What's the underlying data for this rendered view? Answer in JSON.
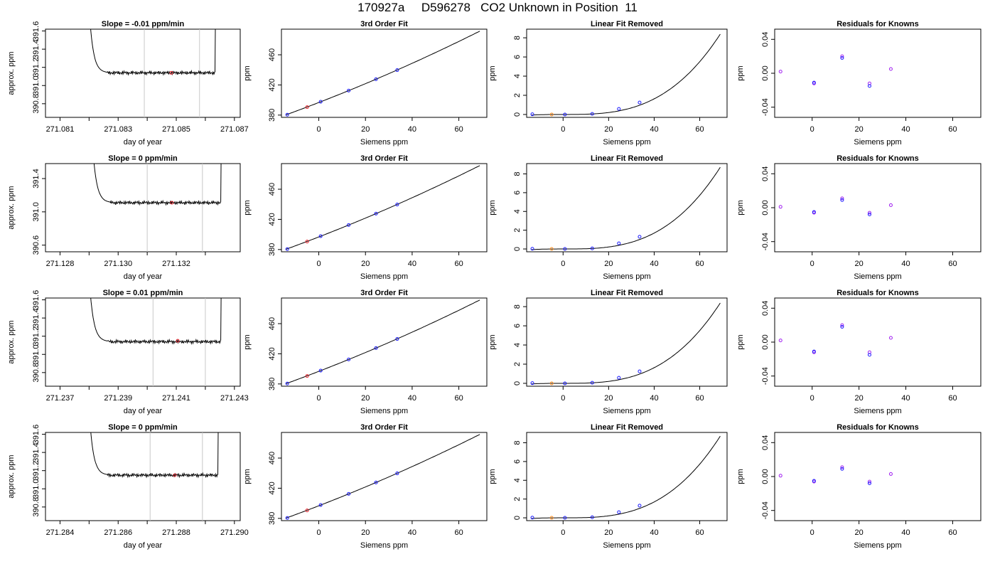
{
  "figure": {
    "title": "170927a     D596278   CO2 Unknown in Position  11"
  },
  "colors": {
    "trace": "#000000",
    "vline": "#c8c8c8",
    "point_red": "#e8202a",
    "point_orange": "#ff8c1a",
    "point_blue": "#1a1aff",
    "point_purple": "#a020f0"
  },
  "chart_data": [
    {
      "type": "line",
      "row": 0,
      "col": 0,
      "title": "Slope =  -0.01  ppm/min",
      "xlabel": "day of year",
      "ylabel": "approx. ppm",
      "xlim": [
        271.0805,
        271.0872
      ],
      "ylim": [
        390.65,
        391.62
      ],
      "xticks": [
        271.081,
        271.082,
        271.083,
        271.084,
        271.085,
        271.086,
        271.087
      ],
      "xticklabels": [
        "271.081",
        "",
        "271.083",
        "",
        "271.085",
        "",
        "271.087"
      ],
      "yticks": [
        390.8,
        391.0,
        391.2,
        391.4,
        391.6
      ],
      "yticklabels": [
        "390.8",
        "391.0",
        "391.2",
        "391.4",
        "391.6"
      ],
      "trace_start": 271.082,
      "trace_end": 271.0864,
      "plateau": 391.14,
      "vlines": [
        271.0839,
        271.0858
      ],
      "point": {
        "x": 271.08483,
        "y": 391.14,
        "color": "red"
      }
    },
    {
      "type": "scatter+line",
      "row": 0,
      "col": 1,
      "title": "3rd Order Fit",
      "xlabel": "Siemens ppm",
      "ylabel": "ppm",
      "xlim": [
        -16,
        72
      ],
      "ylim": [
        377,
        494
      ],
      "xticks": [
        0,
        20,
        40,
        60
      ],
      "xticklabels": [
        "0",
        "20",
        "40",
        "60"
      ],
      "yticks": [
        380,
        420,
        460
      ],
      "yticklabels": [
        "380",
        "420",
        "460"
      ],
      "curve_x": [
        -14,
        69
      ],
      "curve_coef": [
        396.7,
        1.2,
        0.0025
      ],
      "points": [
        {
          "x": -13.5,
          "y": 380.5,
          "color": "blue"
        },
        {
          "x": -5.0,
          "y": 390.6,
          "color": "red"
        },
        {
          "x": 0.8,
          "y": 397.7,
          "color": "blue"
        },
        {
          "x": 12.8,
          "y": 412.5,
          "color": "blue"
        },
        {
          "x": 24.5,
          "y": 427.6,
          "color": "blue"
        },
        {
          "x": 33.6,
          "y": 439.7,
          "color": "blue"
        }
      ]
    },
    {
      "type": "scatter+line",
      "row": 0,
      "col": 2,
      "title": "Linear Fit Removed",
      "xlabel": "Siemens ppm",
      "ylabel": "ppm",
      "xlim": [
        -16,
        72
      ],
      "ylim": [
        -0.3,
        8.9
      ],
      "xticks": [
        0,
        20,
        40,
        60
      ],
      "xticklabels": [
        "0",
        "20",
        "40",
        "60"
      ],
      "yticks": [
        0,
        2,
        4,
        6,
        8
      ],
      "yticklabels": [
        "0",
        "2",
        "4",
        "6",
        "8"
      ],
      "curve_x": [
        -14,
        69
      ],
      "curve_coef": [
        0.0,
        0.0,
        0.0,
        2.55e-05
      ],
      "points": [
        {
          "x": -13.5,
          "y": 0.02,
          "color": "blue"
        },
        {
          "x": -5.0,
          "y": 0.0,
          "color": "orange"
        },
        {
          "x": 0.8,
          "y": 0.0,
          "color": "blue"
        },
        {
          "x": 12.8,
          "y": 0.06,
          "color": "blue"
        },
        {
          "x": 24.5,
          "y": 0.58,
          "color": "blue"
        },
        {
          "x": 33.6,
          "y": 1.25,
          "color": "blue"
        }
      ]
    },
    {
      "type": "scatter",
      "row": 0,
      "col": 3,
      "title": "Residuals for Knowns",
      "xlabel": "Siemens ppm",
      "ylabel": "ppm",
      "xlim": [
        -16,
        72
      ],
      "ylim": [
        -0.052,
        0.052
      ],
      "xticks": [
        0,
        20,
        40,
        60
      ],
      "xticklabels": [
        "0",
        "20",
        "40",
        "60"
      ],
      "yticks": [
        -0.04,
        0.0,
        0.04
      ],
      "yticklabels": [
        "-0.04",
        "0.00",
        "0.04"
      ],
      "points": [
        {
          "x": -13.5,
          "y": 0.002,
          "color": "purple"
        },
        {
          "x": 0.8,
          "y": -0.012,
          "color": "purple"
        },
        {
          "x": 0.8,
          "y": -0.011,
          "color": "blue"
        },
        {
          "x": 12.8,
          "y": 0.02,
          "color": "purple"
        },
        {
          "x": 12.8,
          "y": 0.018,
          "color": "blue"
        },
        {
          "x": 24.5,
          "y": -0.012,
          "color": "purple"
        },
        {
          "x": 24.5,
          "y": -0.015,
          "color": "blue"
        },
        {
          "x": 33.6,
          "y": 0.005,
          "color": "purple"
        }
      ]
    },
    {
      "type": "line",
      "row": 1,
      "col": 0,
      "title": "Slope =  0  ppm/min",
      "xlabel": "day of year",
      "ylabel": "approx. ppm",
      "xlim": [
        271.1275,
        271.1342
      ],
      "ylim": [
        390.52,
        391.58
      ],
      "xticks": [
        271.128,
        271.129,
        271.13,
        271.131,
        271.132,
        271.133
      ],
      "xticklabels": [
        "271.128",
        "",
        "271.130",
        "",
        "271.132",
        ""
      ],
      "yticks": [
        390.6,
        391.0,
        391.4
      ],
      "yticklabels": [
        "390.6",
        "391.0",
        "391.4"
      ],
      "trace_start": 271.1291,
      "trace_end": 271.1336,
      "plateau": 391.11,
      "vlines": [
        271.131,
        271.1329
      ],
      "point": {
        "x": 271.13185,
        "y": 391.11,
        "color": "red"
      }
    },
    {
      "type": "scatter+line",
      "row": 1,
      "col": 1,
      "title": "3rd Order Fit",
      "xlabel": "Siemens ppm",
      "ylabel": "ppm",
      "xlim": [
        -16,
        72
      ],
      "ylim": [
        377,
        494
      ],
      "xticks": [
        0,
        20,
        40,
        60
      ],
      "xticklabels": [
        "0",
        "20",
        "40",
        "60"
      ],
      "yticks": [
        380,
        420,
        460
      ],
      "yticklabels": [
        "380",
        "420",
        "460"
      ],
      "curve_x": [
        -14,
        69
      ],
      "curve_coef": [
        396.7,
        1.2,
        0.0025
      ],
      "points": [
        {
          "x": -13.5,
          "y": 380.5,
          "color": "blue"
        },
        {
          "x": -5.0,
          "y": 390.6,
          "color": "red"
        },
        {
          "x": 0.8,
          "y": 397.7,
          "color": "blue"
        },
        {
          "x": 12.8,
          "y": 412.5,
          "color": "blue"
        },
        {
          "x": 24.5,
          "y": 427.6,
          "color": "blue"
        },
        {
          "x": 33.6,
          "y": 439.7,
          "color": "blue"
        }
      ]
    },
    {
      "type": "scatter+line",
      "row": 1,
      "col": 2,
      "title": "Linear Fit Removed",
      "xlabel": "Siemens ppm",
      "ylabel": "ppm",
      "xlim": [
        -16,
        72
      ],
      "ylim": [
        -0.3,
        9.1
      ],
      "xticks": [
        0,
        20,
        40,
        60
      ],
      "xticklabels": [
        "0",
        "20",
        "40",
        "60"
      ],
      "yticks": [
        0,
        2,
        4,
        6,
        8
      ],
      "yticklabels": [
        "0",
        "2",
        "4",
        "6",
        "8"
      ],
      "curve_x": [
        -14,
        69
      ],
      "curve_coef": [
        0.0,
        0.0,
        0.0,
        2.65e-05
      ],
      "points": [
        {
          "x": -13.5,
          "y": 0.02,
          "color": "blue"
        },
        {
          "x": -5.0,
          "y": 0.0,
          "color": "orange"
        },
        {
          "x": 0.8,
          "y": 0.0,
          "color": "blue"
        },
        {
          "x": 12.8,
          "y": 0.06,
          "color": "blue"
        },
        {
          "x": 24.5,
          "y": 0.6,
          "color": "blue"
        },
        {
          "x": 33.6,
          "y": 1.3,
          "color": "blue"
        }
      ]
    },
    {
      "type": "scatter",
      "row": 1,
      "col": 3,
      "title": "Residuals for Knowns",
      "xlabel": "Siemens ppm",
      "ylabel": "ppm",
      "xlim": [
        -16,
        72
      ],
      "ylim": [
        -0.052,
        0.052
      ],
      "xticks": [
        0,
        20,
        40,
        60
      ],
      "xticklabels": [
        "0",
        "20",
        "40",
        "60"
      ],
      "yticks": [
        -0.04,
        0.0,
        0.04
      ],
      "yticklabels": [
        "-0.04",
        "0.00",
        "0.04"
      ],
      "points": [
        {
          "x": -13.5,
          "y": 0.001,
          "color": "purple"
        },
        {
          "x": 0.8,
          "y": -0.006,
          "color": "purple"
        },
        {
          "x": 0.8,
          "y": -0.005,
          "color": "blue"
        },
        {
          "x": 12.8,
          "y": 0.011,
          "color": "purple"
        },
        {
          "x": 12.8,
          "y": 0.009,
          "color": "blue"
        },
        {
          "x": 24.5,
          "y": -0.006,
          "color": "purple"
        },
        {
          "x": 24.5,
          "y": -0.008,
          "color": "blue"
        },
        {
          "x": 33.6,
          "y": 0.003,
          "color": "purple"
        }
      ]
    },
    {
      "type": "line",
      "row": 2,
      "col": 0,
      "title": "Slope =  0.01  ppm/min",
      "xlabel": "day of year",
      "ylabel": "approx. ppm",
      "xlim": [
        271.2365,
        271.2432
      ],
      "ylim": [
        390.65,
        391.62
      ],
      "xticks": [
        271.237,
        271.238,
        271.239,
        271.24,
        271.241,
        271.242,
        271.243
      ],
      "xticklabels": [
        "271.237",
        "",
        "271.239",
        "",
        "271.241",
        "",
        "271.243"
      ],
      "yticks": [
        390.8,
        391.0,
        391.2,
        391.4,
        391.6
      ],
      "yticklabels": [
        "390.8",
        "391.0",
        "391.2",
        "391.4",
        "391.6"
      ],
      "trace_start": 271.238,
      "trace_end": 271.2426,
      "plateau": 391.14,
      "vlines": [
        271.2402,
        271.242
      ],
      "point": {
        "x": 271.24105,
        "y": 391.15,
        "color": "red"
      }
    },
    {
      "type": "scatter+line",
      "row": 2,
      "col": 1,
      "title": "3rd Order Fit",
      "xlabel": "Siemens ppm",
      "ylabel": "ppm",
      "xlim": [
        -16,
        72
      ],
      "ylim": [
        377,
        494
      ],
      "xticks": [
        0,
        20,
        40,
        60
      ],
      "xticklabels": [
        "0",
        "20",
        "40",
        "60"
      ],
      "yticks": [
        380,
        420,
        460
      ],
      "yticklabels": [
        "380",
        "420",
        "460"
      ],
      "curve_x": [
        -14,
        69
      ],
      "curve_coef": [
        396.7,
        1.2,
        0.0025
      ],
      "points": [
        {
          "x": -13.5,
          "y": 380.5,
          "color": "blue"
        },
        {
          "x": -5.0,
          "y": 390.6,
          "color": "red"
        },
        {
          "x": 0.8,
          "y": 397.7,
          "color": "blue"
        },
        {
          "x": 12.8,
          "y": 412.5,
          "color": "blue"
        },
        {
          "x": 24.5,
          "y": 427.6,
          "color": "blue"
        },
        {
          "x": 33.6,
          "y": 439.7,
          "color": "blue"
        }
      ]
    },
    {
      "type": "scatter+line",
      "row": 2,
      "col": 2,
      "title": "Linear Fit Removed",
      "xlabel": "Siemens ppm",
      "ylabel": "ppm",
      "xlim": [
        -16,
        72
      ],
      "ylim": [
        -0.3,
        8.9
      ],
      "xticks": [
        0,
        20,
        40,
        60
      ],
      "xticklabels": [
        "0",
        "20",
        "40",
        "60"
      ],
      "yticks": [
        0,
        2,
        4,
        6,
        8
      ],
      "yticklabels": [
        "0",
        "2",
        "4",
        "6",
        "8"
      ],
      "curve_x": [
        -14,
        69
      ],
      "curve_coef": [
        0.0,
        0.0,
        0.0,
        2.55e-05
      ],
      "points": [
        {
          "x": -13.5,
          "y": 0.02,
          "color": "blue"
        },
        {
          "x": -5.0,
          "y": 0.0,
          "color": "orange"
        },
        {
          "x": 0.8,
          "y": 0.0,
          "color": "blue"
        },
        {
          "x": 12.8,
          "y": 0.06,
          "color": "blue"
        },
        {
          "x": 24.5,
          "y": 0.58,
          "color": "blue"
        },
        {
          "x": 33.6,
          "y": 1.25,
          "color": "blue"
        }
      ]
    },
    {
      "type": "scatter",
      "row": 2,
      "col": 3,
      "title": "Residuals for Knowns",
      "xlabel": "Siemens ppm",
      "ylabel": "ppm",
      "xlim": [
        -16,
        72
      ],
      "ylim": [
        -0.052,
        0.052
      ],
      "xticks": [
        0,
        20,
        40,
        60
      ],
      "xticklabels": [
        "0",
        "20",
        "40",
        "60"
      ],
      "yticks": [
        -0.04,
        0.0,
        0.04
      ],
      "yticklabels": [
        "-0.04",
        "0.00",
        "0.04"
      ],
      "points": [
        {
          "x": -13.5,
          "y": 0.002,
          "color": "purple"
        },
        {
          "x": 0.8,
          "y": -0.012,
          "color": "purple"
        },
        {
          "x": 0.8,
          "y": -0.011,
          "color": "blue"
        },
        {
          "x": 12.8,
          "y": 0.02,
          "color": "purple"
        },
        {
          "x": 12.8,
          "y": 0.018,
          "color": "blue"
        },
        {
          "x": 24.5,
          "y": -0.012,
          "color": "purple"
        },
        {
          "x": 24.5,
          "y": -0.015,
          "color": "blue"
        },
        {
          "x": 33.6,
          "y": 0.005,
          "color": "purple"
        }
      ]
    },
    {
      "type": "line",
      "row": 3,
      "col": 0,
      "title": "Slope =  0  ppm/min",
      "xlabel": "day of year",
      "ylabel": "approx. ppm",
      "xlim": [
        271.2835,
        271.2902
      ],
      "ylim": [
        390.65,
        391.62
      ],
      "xticks": [
        271.284,
        271.285,
        271.286,
        271.287,
        271.288,
        271.289,
        271.29
      ],
      "xticklabels": [
        "271.284",
        "",
        "271.286",
        "",
        "271.288",
        "",
        "271.290"
      ],
      "yticks": [
        390.8,
        391.0,
        391.2,
        391.4,
        391.6
      ],
      "yticklabels": [
        "390.8",
        "391.0",
        "391.2",
        "391.4",
        "391.6"
      ],
      "trace_start": 271.285,
      "trace_end": 271.2895,
      "plateau": 391.15,
      "vlines": [
        271.2871,
        271.2889
      ],
      "point": {
        "x": 271.28795,
        "y": 391.15,
        "color": "red"
      }
    },
    {
      "type": "scatter+line",
      "row": 3,
      "col": 1,
      "title": "3rd Order Fit",
      "xlabel": "Siemens ppm",
      "ylabel": "ppm",
      "xlim": [
        -16,
        72
      ],
      "ylim": [
        377,
        494
      ],
      "xticks": [
        0,
        20,
        40,
        60
      ],
      "xticklabels": [
        "0",
        "20",
        "40",
        "60"
      ],
      "yticks": [
        380,
        420,
        460
      ],
      "yticklabels": [
        "380",
        "420",
        "460"
      ],
      "curve_x": [
        -14,
        69
      ],
      "curve_coef": [
        396.7,
        1.2,
        0.0025
      ],
      "points": [
        {
          "x": -13.5,
          "y": 380.5,
          "color": "blue"
        },
        {
          "x": -5.0,
          "y": 390.6,
          "color": "red"
        },
        {
          "x": 0.8,
          "y": 397.7,
          "color": "blue"
        },
        {
          "x": 12.8,
          "y": 412.5,
          "color": "blue"
        },
        {
          "x": 24.5,
          "y": 427.6,
          "color": "blue"
        },
        {
          "x": 33.6,
          "y": 439.7,
          "color": "blue"
        }
      ]
    },
    {
      "type": "scatter+line",
      "row": 3,
      "col": 2,
      "title": "Linear Fit Removed",
      "xlabel": "Siemens ppm",
      "ylabel": "ppm",
      "xlim": [
        -16,
        72
      ],
      "ylim": [
        -0.3,
        9.1
      ],
      "xticks": [
        0,
        20,
        40,
        60
      ],
      "xticklabels": [
        "0",
        "20",
        "40",
        "60"
      ],
      "yticks": [
        0,
        2,
        4,
        6,
        8
      ],
      "yticklabels": [
        "0",
        "2",
        "4",
        "6",
        "8"
      ],
      "curve_x": [
        -14,
        69
      ],
      "curve_coef": [
        0.0,
        0.0,
        0.0,
        2.65e-05
      ],
      "points": [
        {
          "x": -13.5,
          "y": 0.02,
          "color": "blue"
        },
        {
          "x": -5.0,
          "y": 0.0,
          "color": "orange"
        },
        {
          "x": 0.8,
          "y": 0.0,
          "color": "blue"
        },
        {
          "x": 12.8,
          "y": 0.06,
          "color": "blue"
        },
        {
          "x": 24.5,
          "y": 0.6,
          "color": "blue"
        },
        {
          "x": 33.6,
          "y": 1.3,
          "color": "blue"
        }
      ]
    },
    {
      "type": "scatter",
      "row": 3,
      "col": 3,
      "title": "Residuals for Knowns",
      "xlabel": "Siemens ppm",
      "ylabel": "ppm",
      "xlim": [
        -16,
        72
      ],
      "ylim": [
        -0.052,
        0.052
      ],
      "xticks": [
        0,
        20,
        40,
        60
      ],
      "xticklabels": [
        "0",
        "20",
        "40",
        "60"
      ],
      "yticks": [
        -0.04,
        0.0,
        0.04
      ],
      "yticklabels": [
        "-0.04",
        "0.00",
        "0.04"
      ],
      "points": [
        {
          "x": -13.5,
          "y": 0.001,
          "color": "purple"
        },
        {
          "x": 0.8,
          "y": -0.006,
          "color": "purple"
        },
        {
          "x": 0.8,
          "y": -0.005,
          "color": "blue"
        },
        {
          "x": 12.8,
          "y": 0.011,
          "color": "purple"
        },
        {
          "x": 12.8,
          "y": 0.009,
          "color": "blue"
        },
        {
          "x": 24.5,
          "y": -0.006,
          "color": "purple"
        },
        {
          "x": 24.5,
          "y": -0.008,
          "color": "blue"
        },
        {
          "x": 33.6,
          "y": 0.003,
          "color": "purple"
        }
      ]
    }
  ]
}
